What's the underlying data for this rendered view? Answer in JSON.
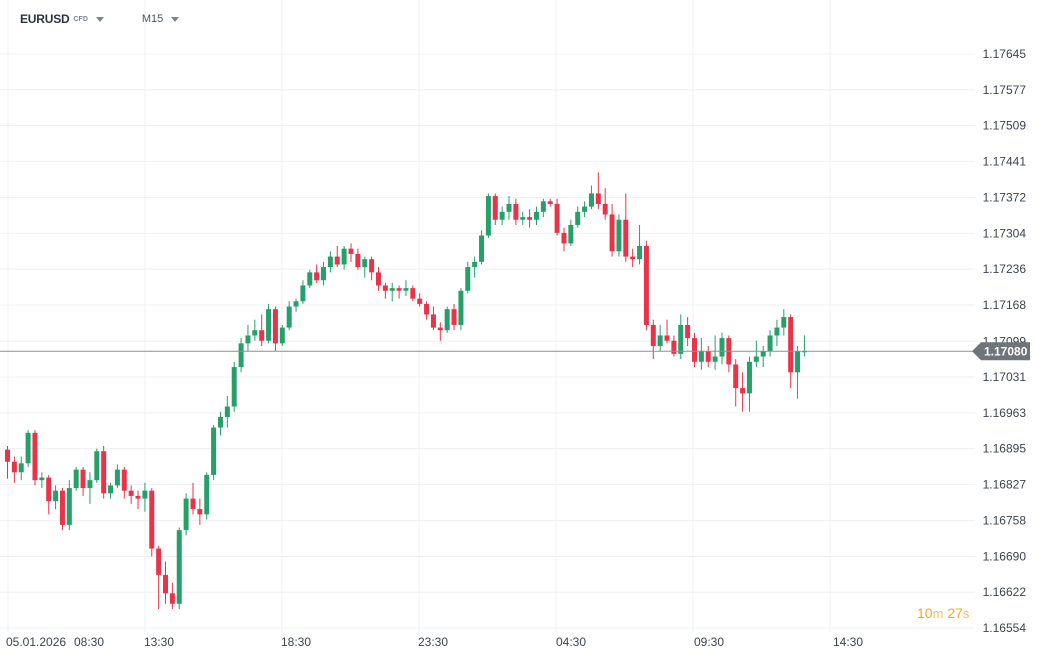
{
  "toolbar": {
    "symbol": "EURUSD",
    "symbol_suffix": "CFD",
    "timeframe": "M15"
  },
  "countdown": {
    "minutes": "10",
    "minutes_unit": "m",
    "seconds": "27",
    "seconds_unit": "s"
  },
  "colors": {
    "up": "#26a06a",
    "down": "#e8344a",
    "grid": "#eef0f3",
    "price_line": "#8a9096",
    "price_tag": "#6e747a",
    "text": "#3b4450"
  },
  "chart_data": {
    "type": "candlestick",
    "title": "",
    "instrument": "EURUSD",
    "timeframe": "M15",
    "current_price": "1.17080",
    "y_ticks": [
      "1.17645",
      "1.17577",
      "1.17509",
      "1.17441",
      "1.17372",
      "1.17304",
      "1.17236",
      "1.17168",
      "1.17099",
      "1.17031",
      "1.16963",
      "1.16895",
      "1.16827",
      "1.16758",
      "1.16690",
      "1.16622",
      "1.16554"
    ],
    "x_ticks": [
      "05.01.2026",
      "08:30",
      "13:30",
      "18:30",
      "23:30",
      "04:30",
      "09:30",
      "14:30"
    ],
    "ylim": [
      1.16554,
      1.17645
    ],
    "grid": true,
    "candles": [
      [
        1.16893,
        1.169,
        1.16838,
        1.1687
      ],
      [
        1.1687,
        1.1688,
        1.1683,
        1.1685
      ],
      [
        1.1685,
        1.1688,
        1.16835,
        1.16867
      ],
      [
        1.16867,
        1.1693,
        1.1686,
        1.16925
      ],
      [
        1.16925,
        1.1693,
        1.16825,
        1.16835
      ],
      [
        1.16835,
        1.1685,
        1.1682,
        1.1684
      ],
      [
        1.1684,
        1.16845,
        1.1677,
        1.16795
      ],
      [
        1.16795,
        1.16825,
        1.1678,
        1.16815
      ],
      [
        1.16815,
        1.1682,
        1.1674,
        1.1675
      ],
      [
        1.1675,
        1.16835,
        1.1674,
        1.1682
      ],
      [
        1.1682,
        1.1686,
        1.16815,
        1.16855
      ],
      [
        1.16855,
        1.1686,
        1.16805,
        1.1682
      ],
      [
        1.1682,
        1.1685,
        1.1679,
        1.16835
      ],
      [
        1.16835,
        1.16895,
        1.1683,
        1.1689
      ],
      [
        1.1689,
        1.169,
        1.168,
        1.1681
      ],
      [
        1.1681,
        1.1683,
        1.168,
        1.16825
      ],
      [
        1.16825,
        1.16865,
        1.1682,
        1.16855
      ],
      [
        1.16855,
        1.1686,
        1.168,
        1.16815
      ],
      [
        1.16815,
        1.16825,
        1.1679,
        1.16805
      ],
      [
        1.16805,
        1.16815,
        1.1678,
        1.168
      ],
      [
        1.168,
        1.1683,
        1.16775,
        1.16815
      ],
      [
        1.16815,
        1.1682,
        1.1669,
        1.16705
      ],
      [
        1.16705,
        1.1671,
        1.1659,
        1.16655
      ],
      [
        1.16655,
        1.1668,
        1.166,
        1.1662
      ],
      [
        1.1662,
        1.1664,
        1.1659,
        1.166
      ],
      [
        1.166,
        1.16745,
        1.1659,
        1.1674
      ],
      [
        1.1674,
        1.1681,
        1.1673,
        1.168
      ],
      [
        1.168,
        1.1683,
        1.1677,
        1.1678
      ],
      [
        1.1678,
        1.168,
        1.1675,
        1.1677
      ],
      [
        1.1677,
        1.1685,
        1.1676,
        1.16845
      ],
      [
        1.16845,
        1.1694,
        1.16835,
        1.16935
      ],
      [
        1.16935,
        1.16965,
        1.1692,
        1.16955
      ],
      [
        1.16955,
        1.16995,
        1.16935,
        1.16975
      ],
      [
        1.16975,
        1.1706,
        1.16965,
        1.1705
      ],
      [
        1.1705,
        1.17105,
        1.1704,
        1.17095
      ],
      [
        1.17095,
        1.1713,
        1.1708,
        1.1711
      ],
      [
        1.1711,
        1.1714,
        1.171,
        1.1712
      ],
      [
        1.1712,
        1.1715,
        1.1709,
        1.171
      ],
      [
        1.171,
        1.1717,
        1.17095,
        1.1716
      ],
      [
        1.1716,
        1.17165,
        1.1708,
        1.17095
      ],
      [
        1.17095,
        1.1713,
        1.1709,
        1.17125
      ],
      [
        1.17125,
        1.17175,
        1.1712,
        1.17165
      ],
      [
        1.17165,
        1.1718,
        1.17155,
        1.17175
      ],
      [
        1.17175,
        1.17215,
        1.1717,
        1.17205
      ],
      [
        1.17205,
        1.17235,
        1.172,
        1.1723
      ],
      [
        1.1723,
        1.17245,
        1.1721,
        1.17215
      ],
      [
        1.17215,
        1.1725,
        1.17205,
        1.1724
      ],
      [
        1.1724,
        1.1727,
        1.1723,
        1.1726
      ],
      [
        1.1726,
        1.1728,
        1.1724,
        1.17245
      ],
      [
        1.17245,
        1.1728,
        1.17235,
        1.17275
      ],
      [
        1.17275,
        1.17285,
        1.1725,
        1.17265
      ],
      [
        1.17265,
        1.17275,
        1.17235,
        1.1724
      ],
      [
        1.1724,
        1.1726,
        1.1722,
        1.17255
      ],
      [
        1.17255,
        1.1726,
        1.17215,
        1.1723
      ],
      [
        1.1723,
        1.1724,
        1.17195,
        1.17205
      ],
      [
        1.17205,
        1.1721,
        1.1718,
        1.17195
      ],
      [
        1.17195,
        1.1721,
        1.17175,
        1.172
      ],
      [
        1.172,
        1.17205,
        1.1718,
        1.17195
      ],
      [
        1.17195,
        1.17215,
        1.17185,
        1.172
      ],
      [
        1.172,
        1.17205,
        1.17175,
        1.1718
      ],
      [
        1.1718,
        1.1719,
        1.17165,
        1.1717
      ],
      [
        1.1717,
        1.17175,
        1.1714,
        1.1715
      ],
      [
        1.1715,
        1.17165,
        1.1712,
        1.17125
      ],
      [
        1.17125,
        1.17135,
        1.171,
        1.1712
      ],
      [
        1.1712,
        1.17165,
        1.17115,
        1.1716
      ],
      [
        1.1716,
        1.1717,
        1.1712,
        1.1713
      ],
      [
        1.1713,
        1.172,
        1.1712,
        1.17195
      ],
      [
        1.17195,
        1.1725,
        1.1719,
        1.1724
      ],
      [
        1.1724,
        1.1726,
        1.1722,
        1.1725
      ],
      [
        1.1725,
        1.1731,
        1.17245,
        1.173
      ],
      [
        1.173,
        1.1738,
        1.17295,
        1.17375
      ],
      [
        1.17375,
        1.1738,
        1.1732,
        1.1733
      ],
      [
        1.1733,
        1.17355,
        1.1732,
        1.17345
      ],
      [
        1.17345,
        1.17375,
        1.1733,
        1.1736
      ],
      [
        1.1736,
        1.1737,
        1.1732,
        1.1733
      ],
      [
        1.1733,
        1.17345,
        1.1732,
        1.17335
      ],
      [
        1.17335,
        1.1735,
        1.17315,
        1.1733
      ],
      [
        1.1733,
        1.17355,
        1.1732,
        1.17345
      ],
      [
        1.17345,
        1.1737,
        1.17335,
        1.17365
      ],
      [
        1.17365,
        1.1737,
        1.17355,
        1.1736
      ],
      [
        1.1736,
        1.1737,
        1.173,
        1.17305
      ],
      [
        1.17305,
        1.17315,
        1.1727,
        1.17285
      ],
      [
        1.17285,
        1.1733,
        1.1728,
        1.1732
      ],
      [
        1.1732,
        1.17355,
        1.17315,
        1.17345
      ],
      [
        1.17345,
        1.17365,
        1.17335,
        1.17355
      ],
      [
        1.17355,
        1.17395,
        1.1735,
        1.1738
      ],
      [
        1.1738,
        1.1742,
        1.1735,
        1.1736
      ],
      [
        1.1736,
        1.1739,
        1.1733,
        1.1734
      ],
      [
        1.1734,
        1.1736,
        1.1726,
        1.1727
      ],
      [
        1.1727,
        1.1734,
        1.1726,
        1.1733
      ],
      [
        1.1733,
        1.1738,
        1.1725,
        1.1726
      ],
      [
        1.1726,
        1.17275,
        1.1724,
        1.17255
      ],
      [
        1.17255,
        1.1732,
        1.17245,
        1.1728
      ],
      [
        1.1728,
        1.1729,
        1.1712,
        1.1713
      ],
      [
        1.1713,
        1.1714,
        1.17065,
        1.1709
      ],
      [
        1.1709,
        1.1713,
        1.1708,
        1.1711
      ],
      [
        1.1711,
        1.1714,
        1.17095,
        1.171
      ],
      [
        1.171,
        1.1711,
        1.1707,
        1.17075
      ],
      [
        1.17075,
        1.1715,
        1.17065,
        1.1713
      ],
      [
        1.1713,
        1.17145,
        1.1709,
        1.17105
      ],
      [
        1.17105,
        1.17115,
        1.1705,
        1.1706
      ],
      [
        1.1706,
        1.17105,
        1.17045,
        1.1708
      ],
      [
        1.1708,
        1.1709,
        1.1705,
        1.1706
      ],
      [
        1.1706,
        1.1711,
        1.17045,
        1.1707
      ],
      [
        1.1707,
        1.17115,
        1.17055,
        1.17105
      ],
      [
        1.17105,
        1.1711,
        1.1704,
        1.17055
      ],
      [
        1.17055,
        1.17065,
        1.16975,
        1.1701
      ],
      [
        1.1701,
        1.1704,
        1.16965,
        1.17
      ],
      [
        1.17,
        1.1707,
        1.16965,
        1.1706
      ],
      [
        1.1706,
        1.171,
        1.1705,
        1.1707
      ],
      [
        1.1707,
        1.1709,
        1.1705,
        1.1708
      ],
      [
        1.1708,
        1.1712,
        1.1707,
        1.1711
      ],
      [
        1.1711,
        1.1714,
        1.1709,
        1.17125
      ],
      [
        1.17125,
        1.1716,
        1.1711,
        1.17145
      ],
      [
        1.17145,
        1.1715,
        1.1701,
        1.1704
      ],
      [
        1.1704,
        1.1709,
        1.1699,
        1.1708
      ],
      [
        1.1708,
        1.1711,
        1.1707,
        1.1708
      ]
    ]
  }
}
